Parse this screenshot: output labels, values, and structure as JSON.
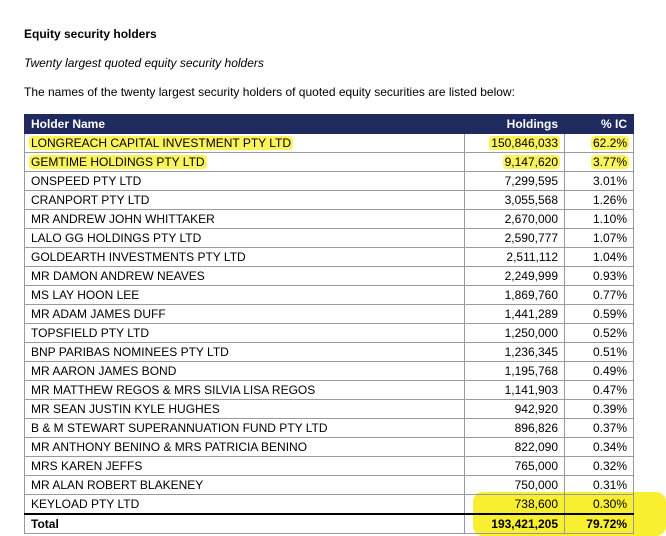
{
  "document": {
    "heading": "Equity security holders",
    "subheading": "Twenty largest quoted equity security holders",
    "intro": "The names of the twenty largest security holders of quoted equity securities are listed below:"
  },
  "table": {
    "columns": [
      "Holder Name",
      "Holdings",
      "% IC"
    ],
    "rows": [
      {
        "name": "LONGREACH CAPITAL INVESTMENT PTY LTD",
        "holdings": "150,846,033",
        "pct": "62.2%",
        "highlighted": true
      },
      {
        "name": "GEMTIME HOLDINGS PTY LTD",
        "holdings": "9,147,620",
        "pct": "3.77%",
        "highlighted": true
      },
      {
        "name": "ONSPEED PTY LTD",
        "holdings": "7,299,595",
        "pct": "3.01%"
      },
      {
        "name": "CRANPORT PTY LTD",
        "holdings": "3,055,568",
        "pct": "1.26%"
      },
      {
        "name": "MR ANDREW JOHN WHITTAKER",
        "holdings": "2,670,000",
        "pct": "1.10%"
      },
      {
        "name": "LALO GG HOLDINGS PTY LTD",
        "holdings": "2,590,777",
        "pct": "1.07%"
      },
      {
        "name": "GOLDEARTH INVESTMENTS PTY LTD",
        "holdings": "2,511,112",
        "pct": "1.04%"
      },
      {
        "name": "MR DAMON ANDREW NEAVES",
        "holdings": "2,249,999",
        "pct": "0.93%"
      },
      {
        "name": "MS LAY HOON LEE",
        "holdings": "1,869,760",
        "pct": "0.77%"
      },
      {
        "name": "MR ADAM JAMES DUFF",
        "holdings": "1,441,289",
        "pct": "0.59%"
      },
      {
        "name": "TOPSFIELD PTY LTD",
        "holdings": "1,250,000",
        "pct": "0.52%"
      },
      {
        "name": "BNP PARIBAS NOMINEES PTY LTD",
        "holdings": "1,236,345",
        "pct": "0.51%"
      },
      {
        "name": "MR AARON JAMES BOND",
        "holdings": "1,195,768",
        "pct": "0.49%"
      },
      {
        "name": "MR MATTHEW REGOS & MRS SILVIA LISA REGOS",
        "holdings": "1,141,903",
        "pct": "0.47%"
      },
      {
        "name": "MR SEAN JUSTIN KYLE HUGHES",
        "holdings": "942,920",
        "pct": "0.39%"
      },
      {
        "name": "B & M STEWART SUPERANNUATION FUND PTY LTD",
        "holdings": "896,826",
        "pct": "0.37%"
      },
      {
        "name": "MR ANTHONY BENINO & MRS PATRICIA BENINO",
        "holdings": "822,090",
        "pct": "0.34%"
      },
      {
        "name": "MRS KAREN JEFFS",
        "holdings": "765,000",
        "pct": "0.32%"
      },
      {
        "name": "MR ALAN ROBERT BLAKENEY",
        "holdings": "750,000",
        "pct": "0.31%"
      },
      {
        "name": "KEYLOAD PTY LTD",
        "holdings": "738,600",
        "pct": "0.30%",
        "highlighted_values": true
      }
    ],
    "total": {
      "label": "Total",
      "holdings": "193,421,205",
      "pct": "79.72%"
    }
  },
  "colors": {
    "header_bg": "#1f2a5e",
    "header_text": "#ffffff",
    "highlight": "#f7ee1e"
  }
}
